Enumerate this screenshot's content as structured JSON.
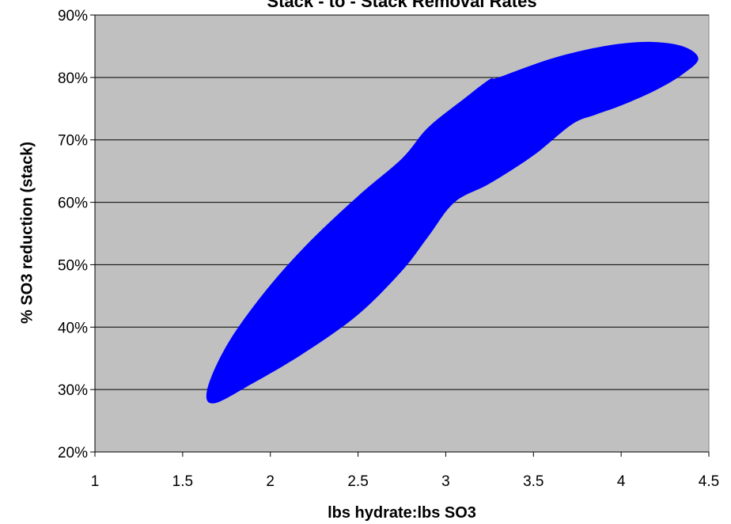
{
  "chart_data": {
    "type": "scatter",
    "title": "Stack - to - Stack Removal Rates",
    "xlabel": "lbs hydrate:lbs SO3",
    "ylabel": "% SO3 reduction (stack)",
    "xlim": [
      1,
      4.5
    ],
    "ylim": [
      20,
      90
    ],
    "x_ticks": [
      "1",
      "1.5",
      "2",
      "2.5",
      "3",
      "3.5",
      "4",
      "4.5"
    ],
    "y_ticks": [
      "20%",
      "30%",
      "40%",
      "50%",
      "60%",
      "70%",
      "80%",
      "90%"
    ],
    "grid": "horizontal",
    "plot_background": "#c0c0c0",
    "region_color": "#0000ff",
    "region_outline": [
      [
        1.68,
        27.8
      ],
      [
        1.9,
        31
      ],
      [
        2.2,
        36
      ],
      [
        2.5,
        42
      ],
      [
        2.75,
        49
      ],
      [
        2.9,
        54.5
      ],
      [
        3.05,
        60
      ],
      [
        3.25,
        63
      ],
      [
        3.5,
        67.5
      ],
      [
        3.72,
        72.5
      ],
      [
        3.85,
        74
      ],
      [
        4.0,
        75.5
      ],
      [
        4.2,
        78
      ],
      [
        4.35,
        80.5
      ],
      [
        4.44,
        83
      ],
      [
        4.35,
        85
      ],
      [
        4.15,
        85.7
      ],
      [
        3.9,
        85
      ],
      [
        3.6,
        83
      ],
      [
        3.3,
        80
      ],
      [
        3.25,
        79.7
      ],
      [
        3.1,
        76.5
      ],
      [
        2.9,
        72
      ],
      [
        2.75,
        67
      ],
      [
        2.5,
        61
      ],
      [
        2.2,
        53
      ],
      [
        1.95,
        45
      ],
      [
        1.75,
        37
      ],
      [
        1.64,
        30
      ]
    ]
  }
}
